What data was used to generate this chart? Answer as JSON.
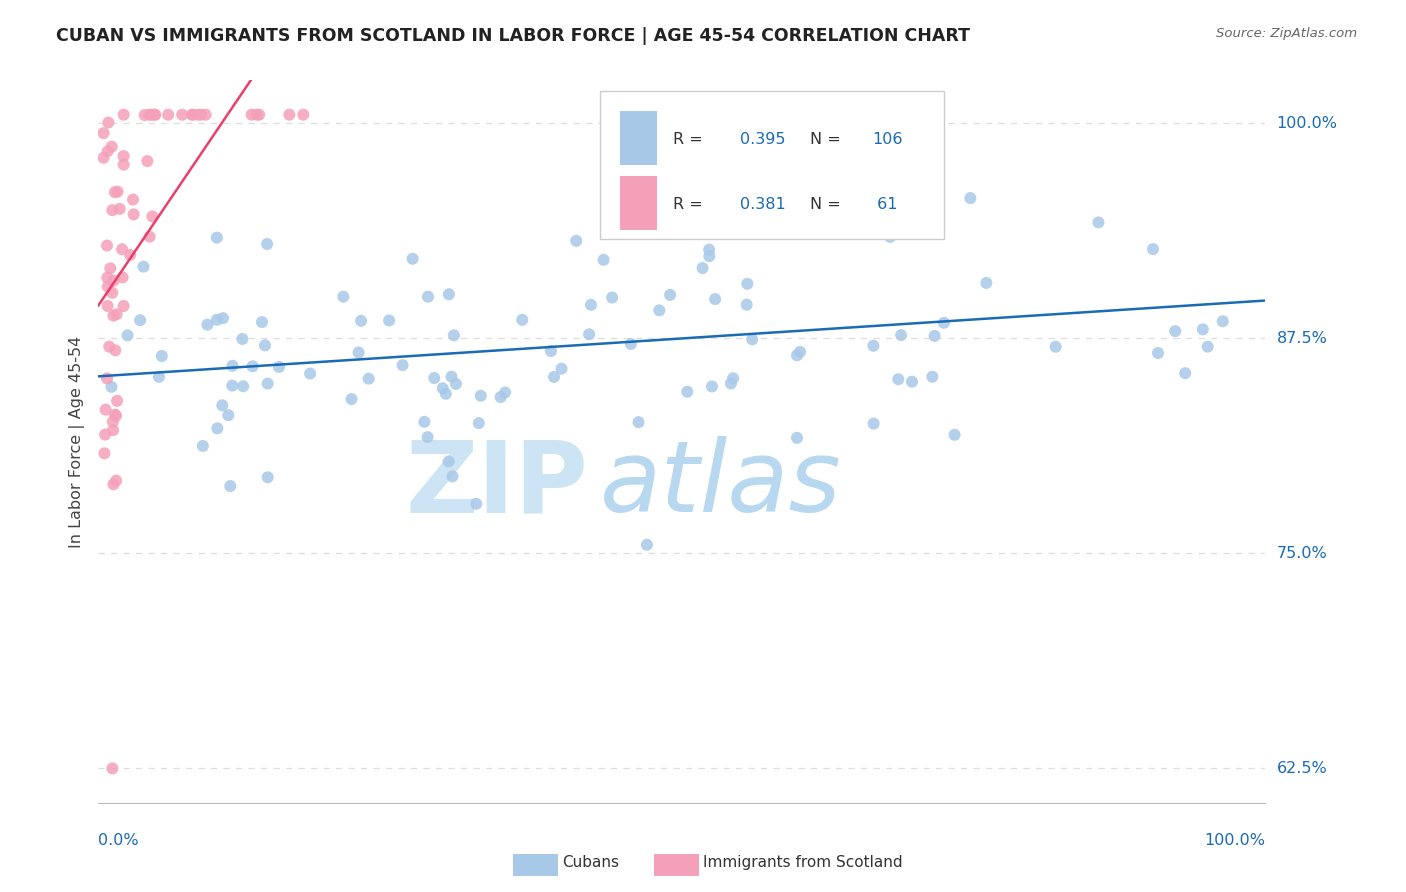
{
  "title": "CUBAN VS IMMIGRANTS FROM SCOTLAND IN LABOR FORCE | AGE 45-54 CORRELATION CHART",
  "source": "Source: ZipAtlas.com",
  "ylabel": "In Labor Force | Age 45-54",
  "ytick_labels": [
    "62.5%",
    "75.0%",
    "87.5%",
    "100.0%"
  ],
  "ytick_vals": [
    0.625,
    0.75,
    0.875,
    1.0
  ],
  "xlim": [
    0.0,
    1.0
  ],
  "ylim": [
    0.605,
    1.025
  ],
  "blue_color": "#a8c8e8",
  "pink_color": "#f4a0b8",
  "line_blue": "#1a6bb5",
  "line_pink": "#e8406a",
  "title_color": "#222222",
  "axis_label_color": "#1a6bb5",
  "watermark_zip_color": "#cde4f5",
  "watermark_atlas_color": "#b8d8f0",
  "background_color": "#ffffff",
  "grid_color": "#dddddd",
  "legend_r_blue": "0.395",
  "legend_n_blue": "106",
  "legend_r_pink": "0.381",
  "legend_n_pink": " 61",
  "bottom_legend_cubans": "Cubans",
  "bottom_legend_scotland": "Immigrants from Scotland"
}
